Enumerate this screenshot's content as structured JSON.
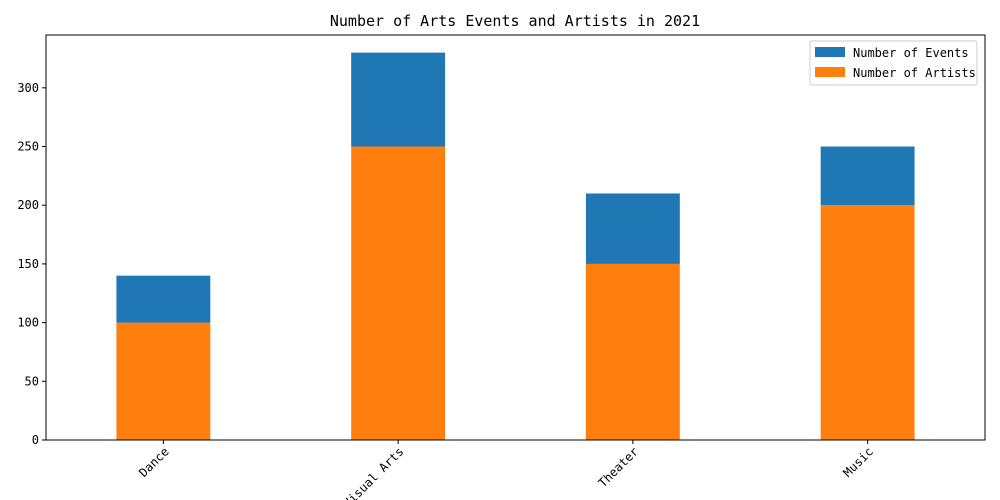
{
  "chart_data": {
    "type": "bar",
    "stacked": true,
    "title": "Number of Arts Events and Artists in 2021",
    "xlabel": "",
    "ylabel": "",
    "categories": [
      "Dance",
      "Visual Arts",
      "Theater",
      "Music"
    ],
    "series": [
      {
        "name": "Number of Artists",
        "values": [
          100,
          250,
          150,
          200
        ],
        "color": "#ff7f0e"
      },
      {
        "name": "Number of Events",
        "values": [
          40,
          80,
          60,
          50
        ],
        "color": "#1f77b4"
      }
    ],
    "ylim": [
      0,
      345
    ],
    "yticks": [
      0,
      50,
      100,
      150,
      200,
      250,
      300
    ],
    "legend": {
      "position": "top-right",
      "entries": [
        "Number of Events",
        "Number of Artists"
      ]
    },
    "grid": false,
    "xtick_rotation": -45
  }
}
